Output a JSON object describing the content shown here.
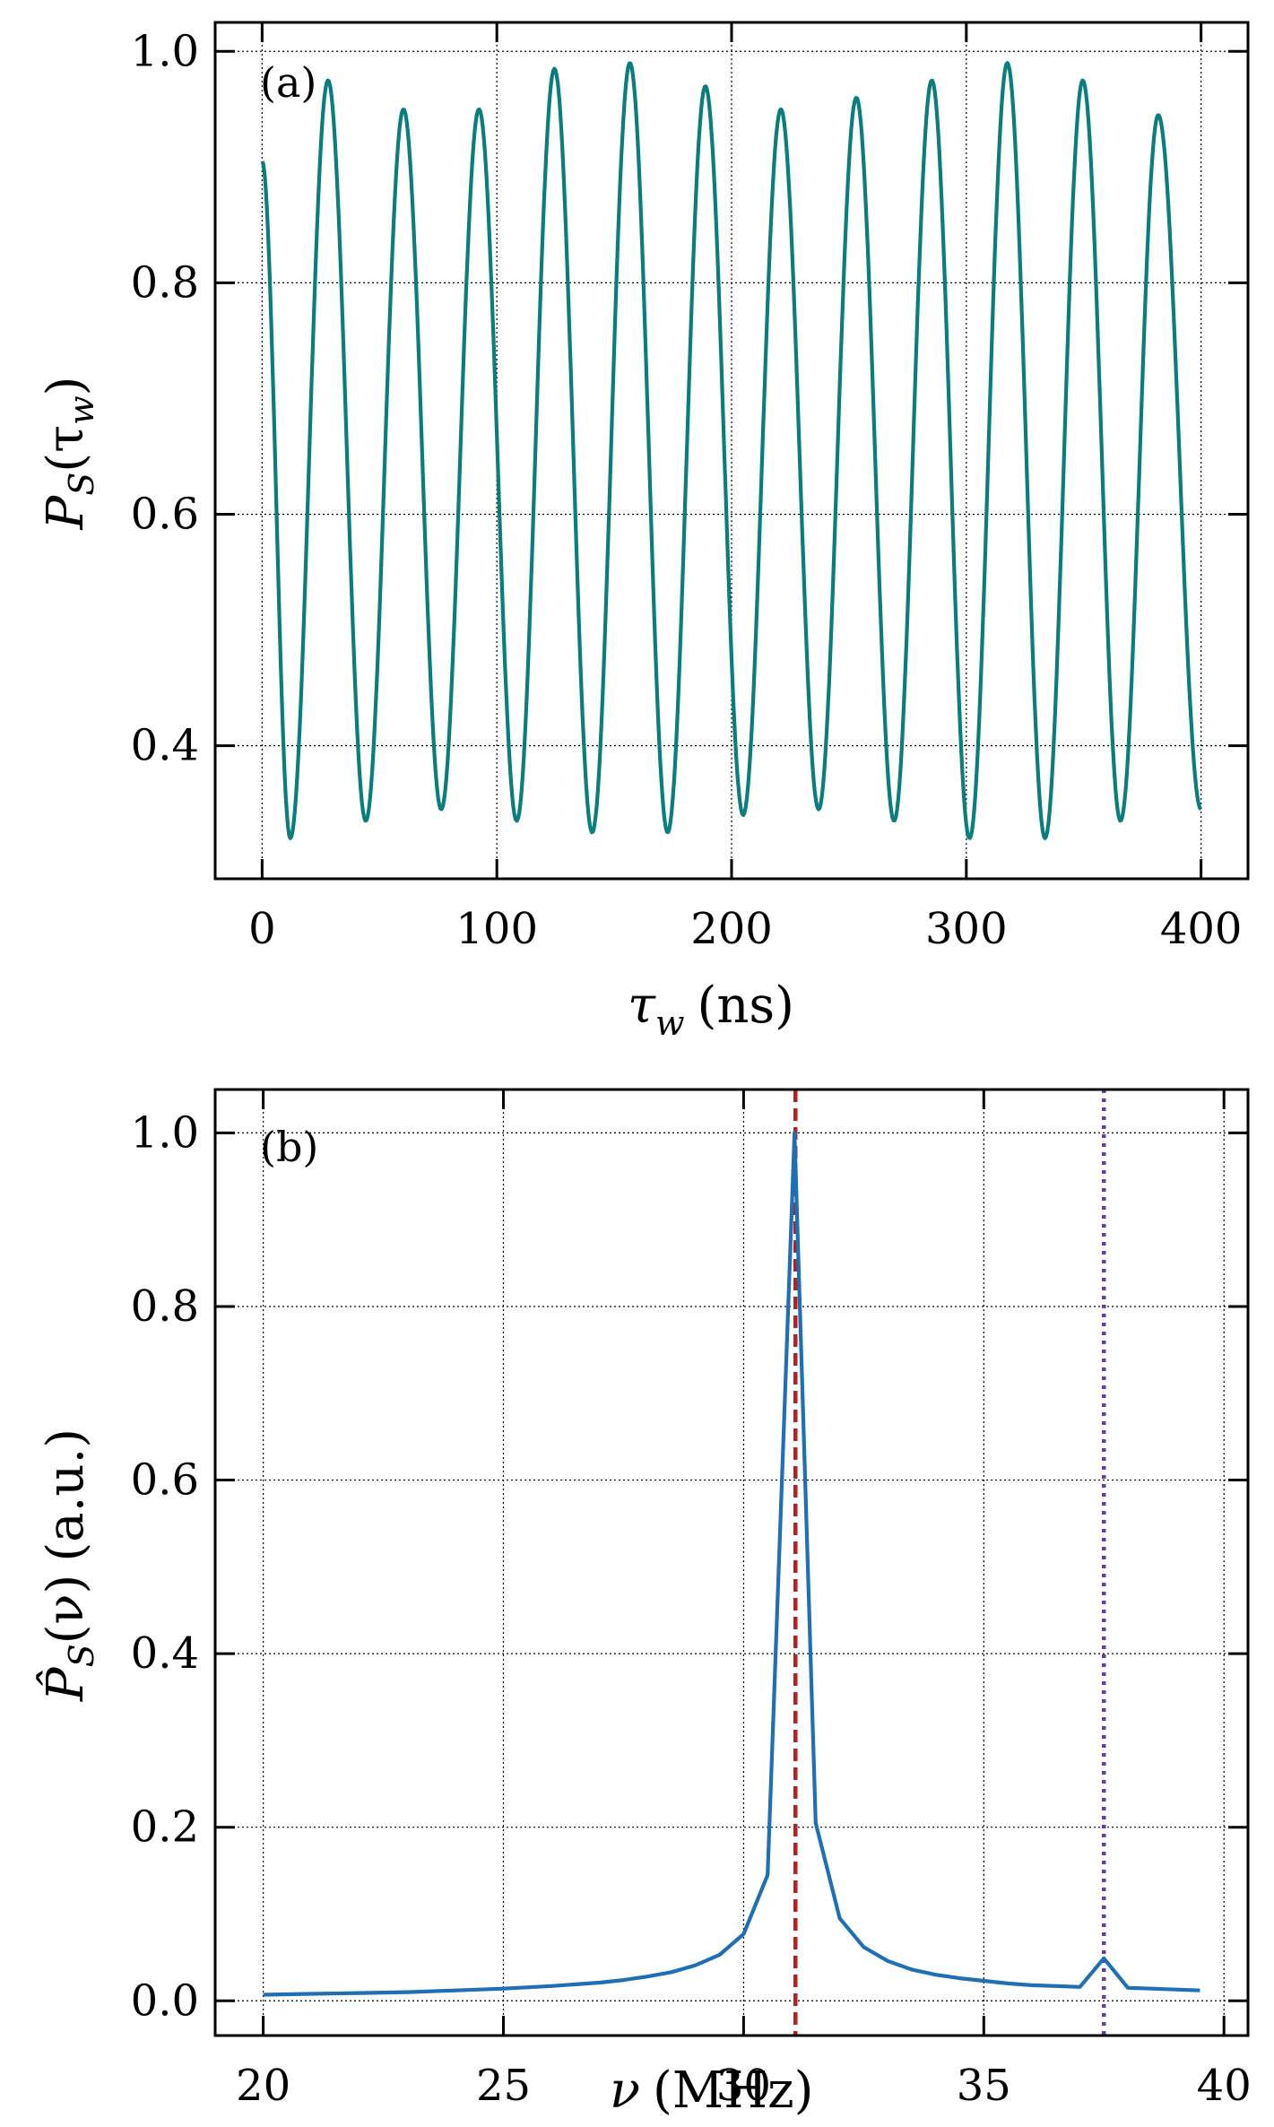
{
  "chart_data": [
    {
      "type": "line",
      "panel_label": "(a)",
      "xlabel": "τ",
      "xlabel_sub": "w",
      "xlabel_unit": "(ns)",
      "ylabel": "P",
      "ylabel_sub": "S",
      "ylabel_arg": "(τ",
      "ylabel_arg_sub": "w",
      "ylabel_close": ")",
      "xlim": [
        -20,
        420
      ],
      "ylim": [
        0.285,
        1.025
      ],
      "xticks": [
        0,
        100,
        200,
        300,
        400
      ],
      "yticks": [
        0.4,
        0.6,
        0.8,
        1.0
      ],
      "xtick_labels": [
        "0",
        "100",
        "200",
        "300",
        "400"
      ],
      "ytick_labels": [
        "0.4",
        "0.6",
        "0.8",
        "1.0"
      ],
      "grid": true,
      "series": [
        {
          "color": "#0a7d7d",
          "frequency_mhz": 31.1,
          "x_range": [
            0,
            400
          ],
          "peaks": [
            0.975,
            0.95,
            0.95,
            0.985,
            0.99,
            0.97,
            0.95,
            0.96,
            0.975,
            0.99,
            0.975,
            0.945
          ],
          "troughs": [
            0.32,
            0.335,
            0.345,
            0.335,
            0.325,
            0.325,
            0.34,
            0.345,
            0.335,
            0.32,
            0.32,
            0.335
          ],
          "start_value": 0.905,
          "end_value": 0.345
        }
      ]
    },
    {
      "type": "line",
      "panel_label": "(b)",
      "xlabel": "ν",
      "xlabel_unit": "(MHz)",
      "ylabel": "P̂",
      "ylabel_sub": "S",
      "ylabel_arg": "(ν)",
      "ylabel_unit": "(a.u.)",
      "xlim": [
        19,
        40.5
      ],
      "ylim": [
        -0.04,
        1.05
      ],
      "xticks": [
        20,
        25,
        30,
        35,
        40
      ],
      "yticks": [
        0.0,
        0.2,
        0.4,
        0.6,
        0.8,
        1.0
      ],
      "xtick_labels": [
        "20",
        "25",
        "30",
        "35",
        "40"
      ],
      "ytick_labels": [
        "0.0",
        "0.2",
        "0.4",
        "0.6",
        "0.8",
        "1.0"
      ],
      "grid": true,
      "series": [
        {
          "color": "#1f6fb4",
          "x": [
            20,
            21,
            22,
            23,
            24,
            25,
            26,
            27,
            27.5,
            28,
            28.5,
            29,
            29.5,
            30,
            30.5,
            31.06,
            31.5,
            32,
            32.5,
            33,
            33.5,
            34,
            34.5,
            35,
            35.5,
            36,
            36.5,
            37,
            37.5,
            38,
            38.5,
            39,
            39.5
          ],
          "y": [
            0.007,
            0.008,
            0.009,
            0.01,
            0.012,
            0.014,
            0.017,
            0.021,
            0.024,
            0.028,
            0.033,
            0.041,
            0.053,
            0.077,
            0.145,
            1.0,
            0.205,
            0.095,
            0.062,
            0.046,
            0.036,
            0.03,
            0.026,
            0.023,
            0.02,
            0.018,
            0.017,
            0.016,
            0.049,
            0.015,
            0.014,
            0.013,
            0.012
          ]
        }
      ],
      "vlines": [
        {
          "x": 31.08,
          "color": "#b22222",
          "style": "dashed"
        },
        {
          "x": 37.5,
          "color": "#6a3d9a",
          "style": "dotted"
        }
      ]
    }
  ]
}
